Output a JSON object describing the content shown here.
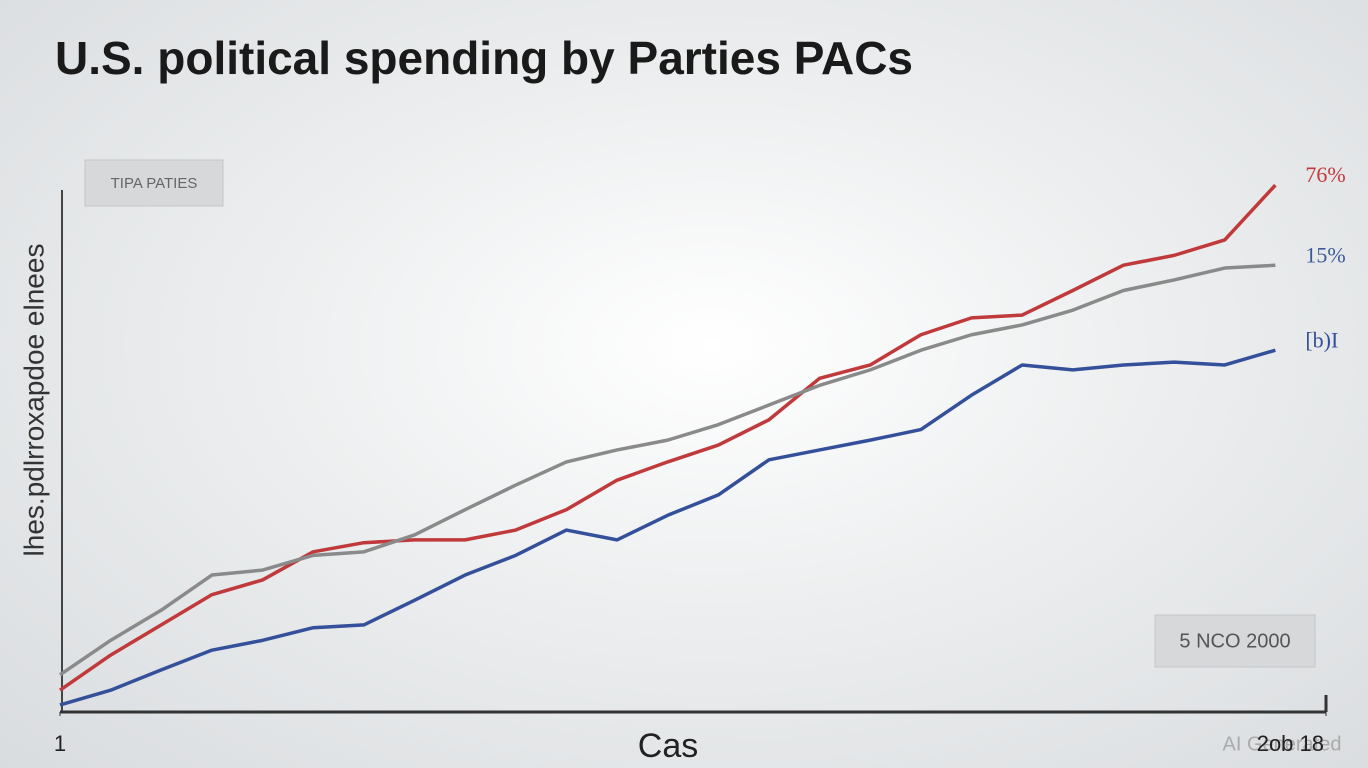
{
  "chart_data": {
    "type": "line",
    "title": "U.S. political spending by Parties PACs",
    "y_label": "lhes.pdlrroxapdoe elnees",
    "x_label": "Cas",
    "legend_text": "TIPA PATIES",
    "annotation": "5 NCO 2000",
    "watermark": "AI Generated",
    "x": [
      1,
      2,
      3,
      4,
      5,
      6,
      7,
      8,
      9,
      10,
      11,
      12,
      13,
      14,
      15,
      16,
      17,
      18,
      19,
      20,
      21,
      22,
      23,
      24,
      25
    ],
    "xlim": [
      1,
      26
    ],
    "xticks": [
      {
        "value": 1,
        "label": "1"
      },
      {
        "value": 26,
        "label": "2ob 18"
      }
    ],
    "ylim": [
      0,
      80
    ],
    "series": [
      {
        "color": "#c0393b",
        "label": "76%",
        "label_color": "#c0393b",
        "values": [
          3.1,
          8.1,
          12.4,
          16.7,
          18.8,
          22.8,
          24.1,
          24.5,
          24.5,
          25.9,
          28.8,
          33,
          35.6,
          38,
          41.6,
          47.5,
          49.4,
          53.7,
          56.1,
          56.5,
          60,
          63.6,
          65,
          67.2,
          75
        ]
      },
      {
        "color": "#8a8a8a",
        "label": "15%",
        "label_color": "#3c5a9a",
        "values": [
          5.3,
          10.2,
          14.5,
          19.5,
          20.2,
          22.3,
          22.8,
          25.2,
          28.8,
          32.3,
          35.6,
          37.3,
          38.7,
          40.9,
          43.7,
          46.5,
          48.7,
          51.5,
          53.7,
          55.1,
          57.2,
          60,
          61.5,
          63.2,
          63.6
        ]
      },
      {
        "color": "#34509a",
        "label": "[b)I",
        "label_color": "#34509a",
        "values": [
          1,
          3.1,
          6,
          8.8,
          10.2,
          12,
          12.4,
          15.9,
          19.5,
          22.3,
          25.9,
          24.5,
          28,
          30.9,
          35.9,
          37.3,
          38.7,
          40.2,
          45.1,
          49.4,
          48.7,
          49.4,
          49.8,
          49.4,
          51.5
        ]
      }
    ]
  }
}
